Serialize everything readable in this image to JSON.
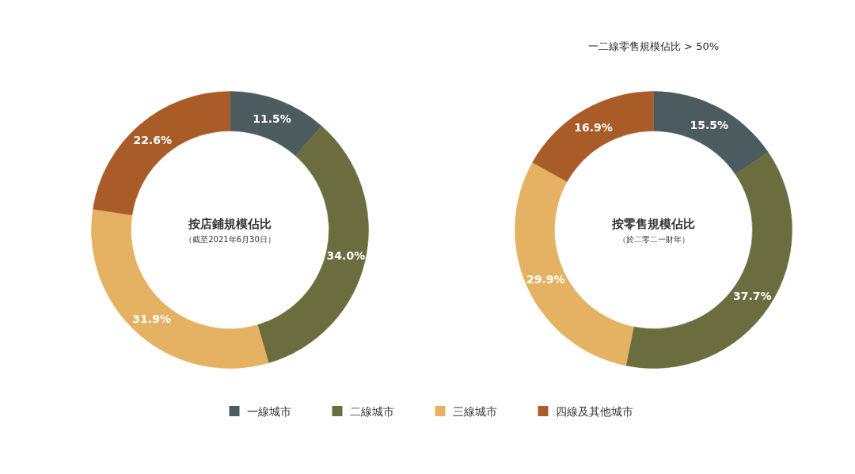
{
  "chart_data": [
    {
      "type": "donut",
      "title": "按店鋪規模佔比",
      "subtitle": "（截至2021年6月30日）",
      "categories": [
        "一線城市",
        "二線城市",
        "三線城市",
        "四線及其他城市"
      ],
      "values": [
        11.5,
        34.0,
        31.9,
        22.6
      ],
      "value_labels": [
        "11.5%",
        "34.0%",
        "31.9%",
        "22.6%"
      ],
      "colors": [
        "#4b5b5e",
        "#6b6d3f",
        "#e4b262",
        "#a95c27"
      ],
      "legend": "bottom"
    },
    {
      "type": "donut",
      "title": "按零售規模佔比",
      "subtitle": "（於二零二一財年）",
      "categories": [
        null,
        null,
        null,
        null
      ],
      "values": [
        15.5,
        37.7,
        29.9,
        16.9
      ],
      "value_labels": [
        "15.5%",
        "37.7%",
        "29.9%",
        "16.9%"
      ],
      "colors": [
        "#4b5b5e",
        "#6b6d3f",
        "#e4b262",
        "#a95c27"
      ],
      "annotations": [
        "一二線零售規模佔比 > 50%"
      ]
    }
  ]
}
